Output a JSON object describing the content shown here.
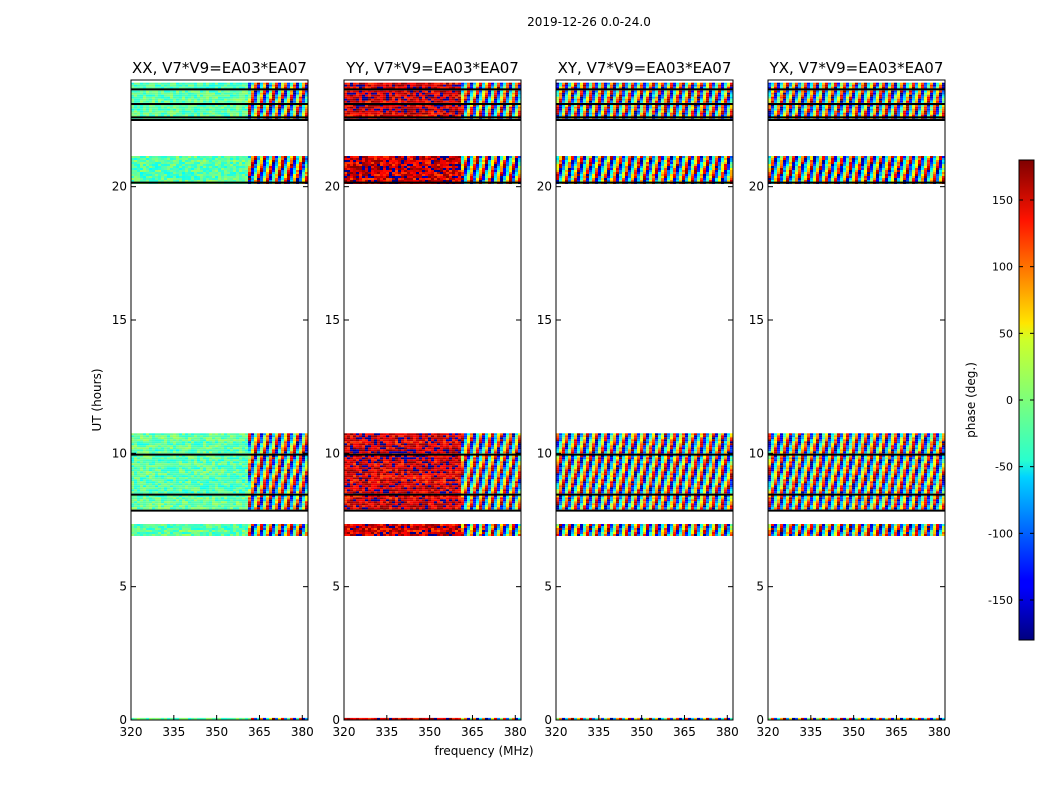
{
  "chart_data": {
    "type": "heatmap",
    "suptitle": "2019-12-26 0.0-24.0",
    "xlabel": "frequency (MHz)",
    "ylabel": "UT (hours)",
    "xlim": [
      320,
      382
    ],
    "ylim": [
      0,
      24
    ],
    "x_ticks": [
      320,
      335,
      350,
      365,
      380
    ],
    "y_ticks": [
      0,
      5,
      10,
      15,
      20
    ],
    "colorbar": {
      "label": "phase (deg.)",
      "range": [
        -180,
        180
      ],
      "ticks": [
        150,
        100,
        50,
        0,
        -50,
        -100,
        -150
      ],
      "colormap": "jet"
    },
    "data_time_ranges_hours": [
      [
        0,
        0.08
      ],
      [
        6.9,
        7.35
      ],
      [
        7.85,
        10.75
      ],
      [
        20.1,
        21.15
      ],
      [
        22.5,
        23.9
      ]
    ],
    "flag_lines_hours": [
      7.85,
      8.45,
      9.95,
      20.15,
      22.5,
      22.6,
      23.1,
      23.65
    ],
    "panels": [
      {
        "title": "XX, V7*V9=EA03*EA07",
        "polarization": "XX",
        "mean_phase_deg": -15,
        "phase_scatter_deg": 25,
        "wrapped_above_mhz": 360,
        "y_tick_labels": true
      },
      {
        "title": "YY, V7*V9=EA03*EA07",
        "polarization": "YY",
        "mean_phase_deg": 155,
        "phase_scatter_deg": 40,
        "wrapped_above_mhz": 360,
        "y_tick_labels": true
      },
      {
        "title": "XY, V7*V9=EA03*EA07",
        "polarization": "XY",
        "mean_phase_deg": 0,
        "phase_scatter_deg": 180,
        "wrapped_above_mhz": 320,
        "y_tick_labels": true
      },
      {
        "title": "YX, V7*V9=EA03*EA07",
        "polarization": "YX",
        "mean_phase_deg": 0,
        "phase_scatter_deg": 180,
        "wrapped_above_mhz": 320,
        "y_tick_labels": true
      }
    ]
  }
}
